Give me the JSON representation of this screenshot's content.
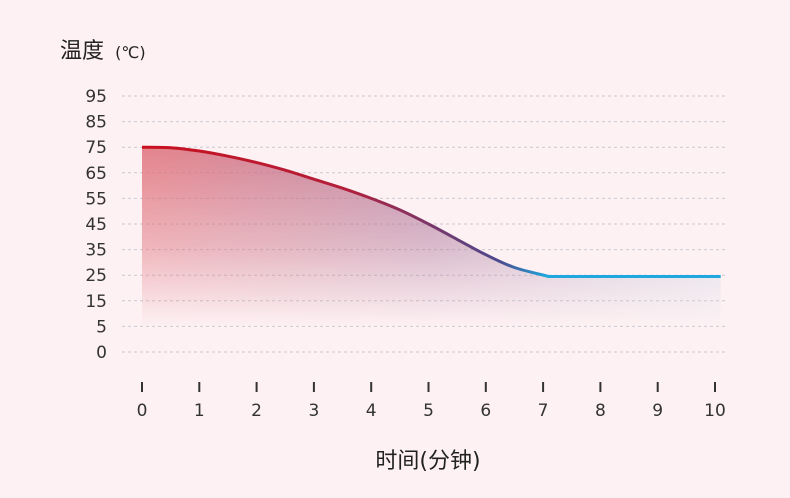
{
  "chart_data": {
    "type": "area",
    "title": "",
    "ylabel": "温度",
    "yunit": "(℃)",
    "xlabel": "时间(分钟)",
    "y_ticks": [
      0,
      5,
      15,
      25,
      35,
      45,
      55,
      65,
      75,
      85,
      95
    ],
    "x_ticks": [
      0,
      1,
      2,
      3,
      4,
      5,
      6,
      7,
      8,
      9,
      10
    ],
    "xlim": [
      0,
      10
    ],
    "ylim": [
      0,
      95
    ],
    "grid": true,
    "series": [
      {
        "x": [
          0,
          0.5,
          1,
          1.5,
          2,
          2.5,
          3,
          3.5,
          4,
          4.5,
          5,
          5.5,
          6,
          6.5,
          7.1,
          8,
          9,
          10.1
        ],
        "y": [
          75,
          74.8,
          73.5,
          71.5,
          69,
          66,
          62.5,
          59,
          55,
          50.5,
          45,
          39,
          33,
          28,
          24.5,
          24.5,
          24.5,
          24.5
        ]
      }
    ],
    "colors": {
      "line_start": "#c8101e",
      "line_mid": "#4b4a8f",
      "line_end": "#1fa8dd",
      "grid": "#c9c9d2"
    }
  }
}
